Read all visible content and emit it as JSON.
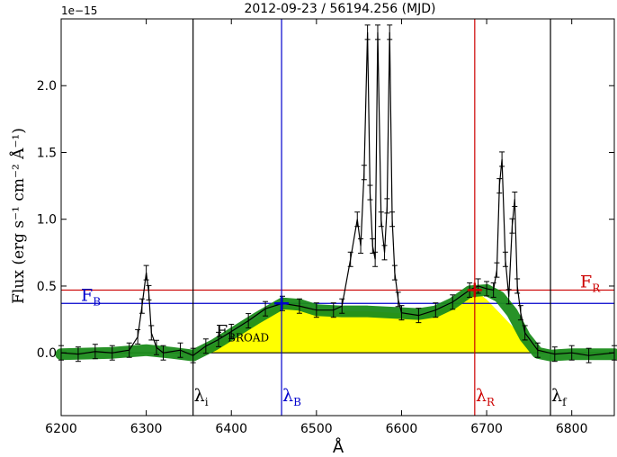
{
  "chart_data": {
    "type": "line",
    "title": "2012-09-23 / 56194.256 (MJD)",
    "xlabel": "Å",
    "ylabel": "Flux (erg s⁻¹ cm⁻² Å⁻¹)",
    "y_scale_label": "1e−15",
    "xlim": [
      6200,
      6850
    ],
    "ylim": [
      -0.47,
      2.5
    ],
    "y_multiplier": 1e-15,
    "xticks": [
      6200,
      6300,
      6400,
      6500,
      6600,
      6700,
      6800
    ],
    "yticks": [
      0.0,
      0.5,
      1.0,
      1.5,
      2.0
    ],
    "ytick_labels": [
      "0.0",
      "0.5",
      "1.0",
      "1.5",
      "2.0"
    ],
    "grid": false,
    "series": [
      {
        "color": "#000000",
        "x": [
          6200,
          6220,
          6240,
          6260,
          6280,
          6290,
          6295,
          6300,
          6303,
          6306,
          6312,
          6320,
          6340,
          6355,
          6370,
          6385,
          6400,
          6420,
          6440,
          6460,
          6480,
          6500,
          6520,
          6530,
          6540,
          6548,
          6552,
          6556,
          6560,
          6563,
          6566,
          6569,
          6572,
          6576,
          6580,
          6583,
          6586,
          6589,
          6592,
          6596,
          6600,
          6620,
          6640,
          6660,
          6680,
          6690,
          6700,
          6708,
          6712,
          6715,
          6718,
          6722,
          6726,
          6730,
          6733,
          6736,
          6740,
          6745,
          6760,
          6780,
          6800,
          6820,
          6850
        ],
        "y": [
          0.0,
          -0.01,
          0.01,
          0.0,
          0.02,
          0.12,
          0.35,
          0.6,
          0.45,
          0.15,
          0.04,
          0.0,
          0.02,
          -0.02,
          0.05,
          0.1,
          0.16,
          0.24,
          0.33,
          0.37,
          0.35,
          0.32,
          0.32,
          0.35,
          0.7,
          1.0,
          0.8,
          1.35,
          2.4,
          1.2,
          0.8,
          0.7,
          2.4,
          1.0,
          0.75,
          1.1,
          2.4,
          1.0,
          0.6,
          0.4,
          0.3,
          0.28,
          0.32,
          0.38,
          0.47,
          0.5,
          0.48,
          0.47,
          0.62,
          1.25,
          1.45,
          0.7,
          0.42,
          0.95,
          1.15,
          0.5,
          0.3,
          0.15,
          0.02,
          -0.01,
          0.0,
          -0.02,
          0.0
        ]
      },
      {
        "color": "#1b8c1b",
        "x": [
          6200,
          6260,
          6300,
          6330,
          6355,
          6380,
          6400,
          6430,
          6460,
          6480,
          6500,
          6530,
          6560,
          6590,
          6620,
          6640,
          6660,
          6680,
          6700,
          6715,
          6730,
          6745,
          6760,
          6775,
          6800,
          6850
        ],
        "y": [
          -0.01,
          0.0,
          0.02,
          0.0,
          -0.02,
          0.06,
          0.14,
          0.26,
          0.37,
          0.36,
          0.32,
          0.31,
          0.31,
          0.3,
          0.29,
          0.31,
          0.37,
          0.46,
          0.47,
          0.42,
          0.3,
          0.12,
          0.0,
          -0.02,
          -0.01,
          -0.01
        ]
      }
    ],
    "fill": {
      "color": "#ffff00",
      "baseline": 0.0,
      "x": [
        6355,
        6380,
        6400,
        6430,
        6460,
        6480,
        6500,
        6530,
        6560,
        6590,
        6620,
        6640,
        6660,
        6686,
        6700,
        6715,
        6730,
        6745,
        6760,
        6775
      ],
      "y": [
        0.0,
        0.06,
        0.14,
        0.26,
        0.37,
        0.36,
        0.32,
        0.31,
        0.31,
        0.3,
        0.29,
        0.31,
        0.37,
        0.47,
        0.4,
        0.3,
        0.2,
        0.12,
        0.04,
        0.0
      ]
    },
    "vlines": [
      {
        "x": 6355,
        "color": "#000000",
        "label": "λ",
        "sub": "i"
      },
      {
        "x": 6459,
        "color": "#0000cc",
        "label": "λ",
        "sub": "B"
      },
      {
        "x": 6686,
        "color": "#cc0000",
        "label": "λ",
        "sub": "R"
      },
      {
        "x": 6775,
        "color": "#000000",
        "label": "λ",
        "sub": "f"
      }
    ],
    "hlines": [
      {
        "y": 0.37,
        "color": "#0000cc",
        "label": "F",
        "sub": "B"
      },
      {
        "y": 0.47,
        "color": "#cc0000",
        "label": "F",
        "sub": "R"
      },
      {
        "y": 0.0,
        "color": "#000000"
      }
    ],
    "markers": [
      {
        "x": 6459,
        "y": 0.37,
        "color": "#0000cc"
      },
      {
        "x": 6686,
        "y": 0.47,
        "color": "#cc0000"
      }
    ],
    "annotation": {
      "text": "F",
      "sub": "BROAD",
      "x": 6535,
      "y": 0.12
    }
  }
}
